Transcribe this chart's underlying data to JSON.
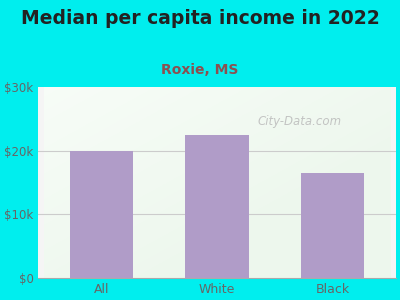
{
  "title": "Median per capita income in 2022",
  "subtitle": "Roxie, MS",
  "categories": [
    "All",
    "White",
    "Black"
  ],
  "values": [
    20000,
    22500,
    16500
  ],
  "bar_color": "#b09cc8",
  "background_color": "#00EEEE",
  "title_color": "#222222",
  "subtitle_color": "#8b5050",
  "tick_color": "#666666",
  "ylim": [
    0,
    30000
  ],
  "yticks": [
    0,
    10000,
    20000,
    30000
  ],
  "ytick_labels": [
    "$0",
    "$10k",
    "$20k",
    "$30k"
  ],
  "title_fontsize": 13.5,
  "subtitle_fontsize": 10,
  "watermark": "City-Data.com",
  "bar_width": 0.55
}
